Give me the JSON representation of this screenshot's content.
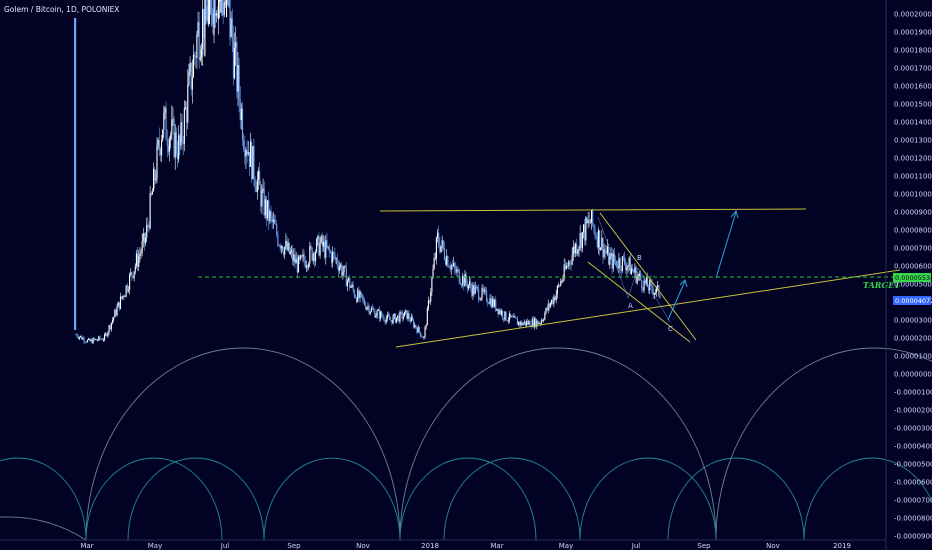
{
  "header": {
    "title": "Golem / Bitcoin, 1D, POLONIEX"
  },
  "colors": {
    "background": "#020324",
    "candle": "#6aa6f5",
    "candle_light": "#ffffff",
    "trendline": "#c9c23a",
    "target_line": "#2fbf3a",
    "arrow": "#2aa3d6",
    "arc_outer": "#6c8093",
    "arc_inner": "#1f8a9a",
    "axis_text": "#cfd3ff",
    "badge_green": "#37d64a",
    "badge_blue": "#3566ff"
  },
  "annotations": {
    "target_label": "TARGET",
    "wave_labels": [
      "A",
      "B",
      "C"
    ]
  },
  "chart_data": {
    "type": "candlestick",
    "title": "Golem / Bitcoin, 1D, POLONIEX",
    "symbol": "Golem / Bitcoin",
    "interval": "1D",
    "exchange": "POLONIEX",
    "y_axis": {
      "position": "right",
      "range": [
        -9e-05,
        0.00021
      ],
      "tick_labels": [
        "0.00020000",
        "0.00019000",
        "0.00018000",
        "0.00017000",
        "0.00016000",
        "0.00015000",
        "0.00014000",
        "0.00013000",
        "0.00012000",
        "0.00011000",
        "0.00010000",
        "0.00009000",
        "0.00008000",
        "0.00007000",
        "0.00006000",
        "0.00005000",
        "0.00004000",
        "0.00003000",
        "0.00002000",
        "0.00001000",
        "0.00000000",
        "-0.00001000",
        "-0.00002000",
        "-0.00003000",
        "-0.00004000",
        "-0.00005000",
        "-0.00006000",
        "-0.00007000",
        "-0.00008000",
        "-0.00009000"
      ]
    },
    "x_axis": {
      "tick_labels": [
        "Mar",
        "May",
        "Jul",
        "Sep",
        "Nov",
        "2018",
        "Mar",
        "May",
        "Jul",
        "Sep",
        "Nov",
        "2019"
      ]
    },
    "price_badges": [
      {
        "label": "0.00005534",
        "value": 5.534e-05,
        "color": "green"
      },
      {
        "label": "0.00004077",
        "value": 4.077e-05,
        "color": "blue"
      }
    ],
    "target_level": 5.55e-05,
    "approx_close_series": {
      "dates": [
        "2017-02-18",
        "2017-03-01",
        "2017-03-15",
        "2017-04-01",
        "2017-04-20",
        "2017-05-05",
        "2017-05-20",
        "2017-06-05",
        "2017-06-20",
        "2017-07-01",
        "2017-07-15",
        "2017-08-01",
        "2017-08-15",
        "2017-09-01",
        "2017-09-20",
        "2017-10-05",
        "2017-10-20",
        "2017-11-05",
        "2017-11-20",
        "2017-12-05",
        "2017-12-20",
        "2018-01-01",
        "2018-01-15",
        "2018-02-01",
        "2018-02-15",
        "2018-03-01",
        "2018-03-15",
        "2018-04-01",
        "2018-04-15",
        "2018-05-01",
        "2018-05-15",
        "2018-06-01",
        "2018-06-15",
        "2018-07-01",
        "2018-07-15"
      ],
      "values": [
        2.2e-05,
        1.8e-05,
        2e-05,
        4.5e-05,
        7.5e-05,
        0.00014,
        0.000125,
        0.00019,
        0.000215,
        0.000205,
        0.000135,
        9.5e-05,
        7.5e-05,
        6e-05,
        7.2e-05,
        6.3e-05,
        4.5e-05,
        3.5e-05,
        3e-05,
        3.3e-05,
        2e-05,
        7.5e-05,
        5.8e-05,
        4.7e-05,
        4.2e-05,
        3.2e-05,
        2.8e-05,
        2.9e-05,
        4.5e-05,
        7e-05,
        8.5e-05,
        6.3e-05,
        6.2e-05,
        5e-05,
        4.5e-05
      ]
    }
  }
}
